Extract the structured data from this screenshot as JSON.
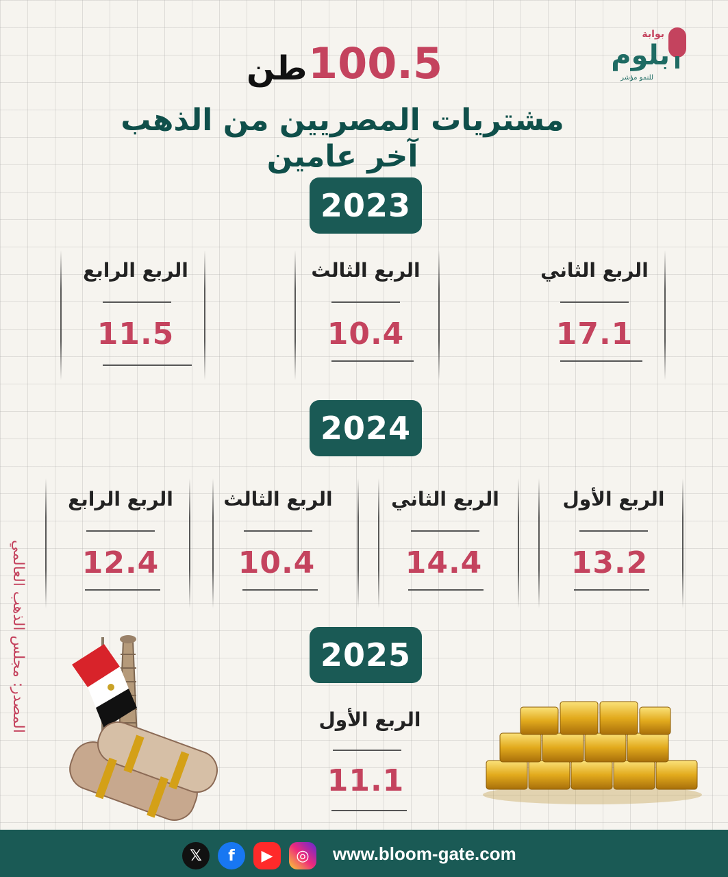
{
  "logo": {
    "top": "بوابة",
    "main": "بلوم",
    "sub": "للنمو مؤشر"
  },
  "headline": {
    "number": "100.5",
    "unit": "طن",
    "subtitle": "مشتريات المصريين من الذهب آخر عامين"
  },
  "years": [
    {
      "year": "2023",
      "quarters": [
        {
          "label": "الربع الثاني",
          "value": "17.1"
        },
        {
          "label": "الربع الثالث",
          "value": "10.4"
        },
        {
          "label": "الربع الرابع",
          "value": "11.5"
        }
      ]
    },
    {
      "year": "2024",
      "quarters": [
        {
          "label": "الربع الأول",
          "value": "13.2"
        },
        {
          "label": "الربع الثاني",
          "value": "14.4"
        },
        {
          "label": "الربع الثالث",
          "value": "10.4"
        },
        {
          "label": "الربع الرابع",
          "value": "12.4"
        }
      ]
    },
    {
      "year": "2025",
      "quarters": [
        {
          "label": "الربع الأول",
          "value": "11.1"
        }
      ]
    }
  ],
  "source": "المصدر: مجلس الذهب العالمي",
  "footer": {
    "website": "www.bloom-gate.com",
    "icons": [
      "x-icon",
      "facebook-icon",
      "youtube-icon",
      "instagram-icon"
    ]
  },
  "colors": {
    "accent": "#c4435e",
    "brand": "#1a5a55"
  }
}
